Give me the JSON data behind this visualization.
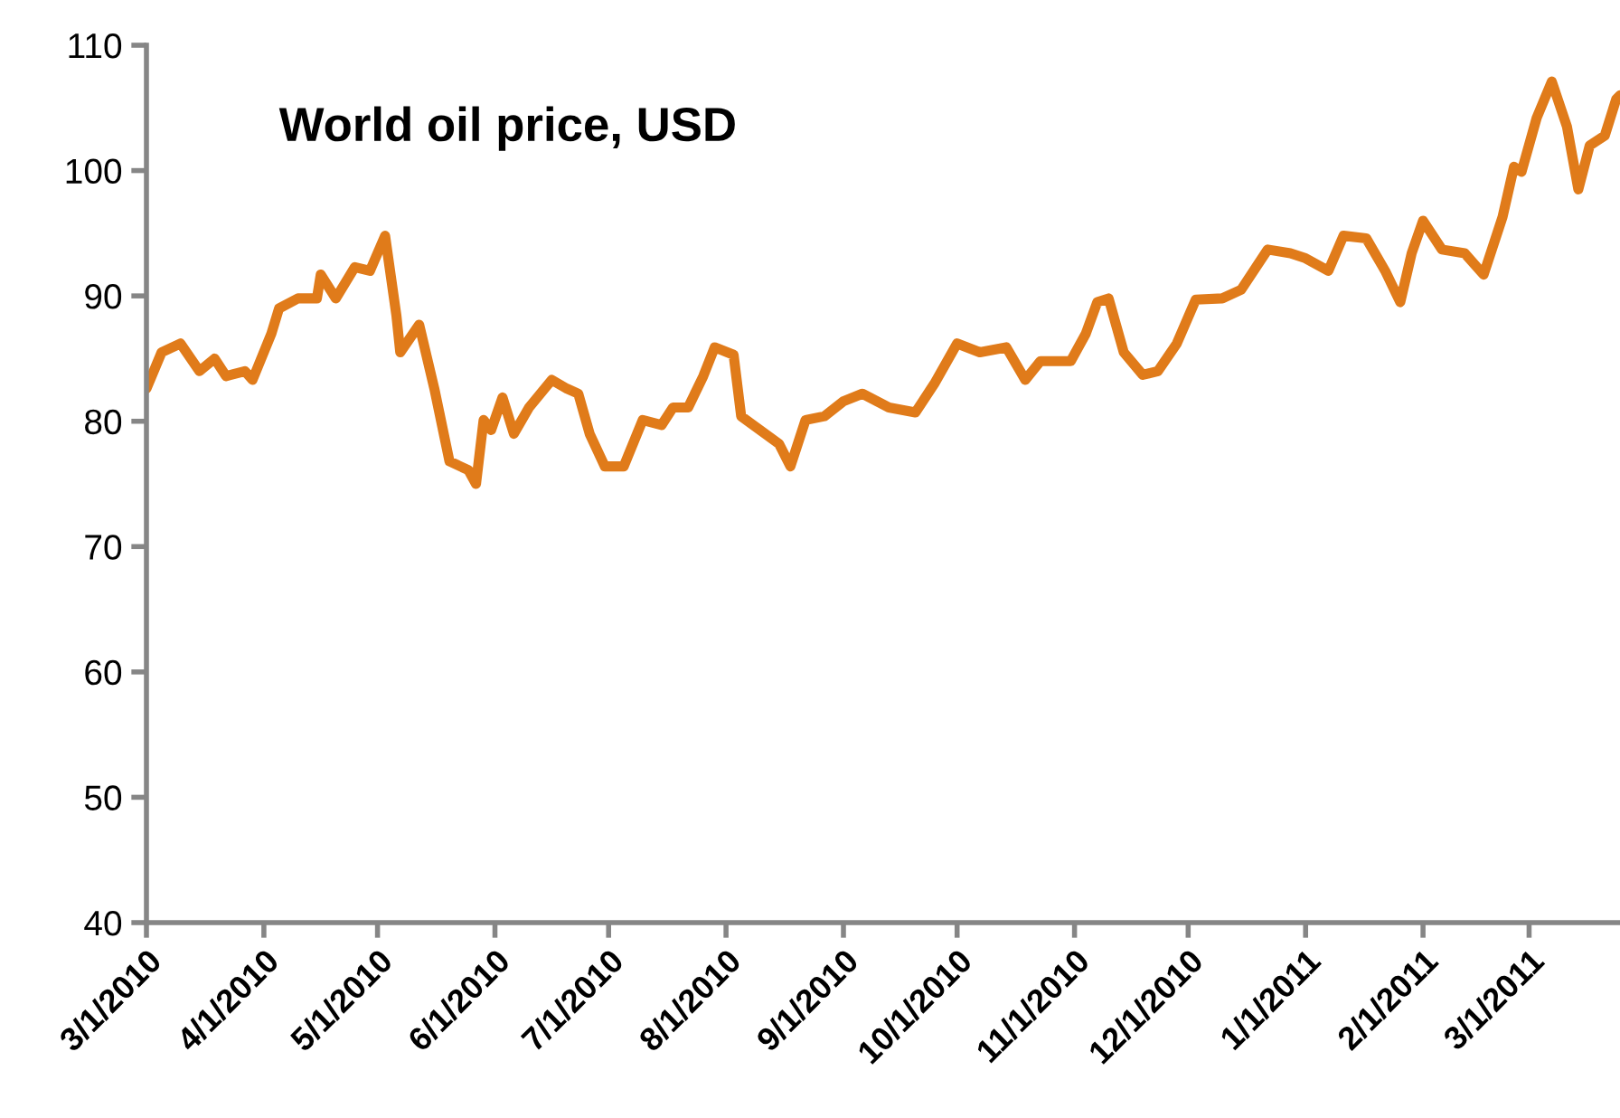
{
  "chart_data": {
    "type": "line",
    "title": "World oil price, USD",
    "x": [
      "2010-03-01",
      "2010-03-05",
      "2010-03-10",
      "2010-03-15",
      "2010-03-19",
      "2010-03-22",
      "2010-03-27",
      "2010-03-29",
      "2010-04-03",
      "2010-04-05",
      "2010-04-10",
      "2010-04-15",
      "2010-04-16",
      "2010-04-20",
      "2010-04-25",
      "2010-04-29",
      "2010-05-03",
      "2010-05-06",
      "2010-05-07",
      "2010-05-12",
      "2010-05-16",
      "2010-05-20",
      "2010-05-25",
      "2010-05-27",
      "2010-05-29",
      "2010-05-31",
      "2010-06-03",
      "2010-06-06",
      "2010-06-10",
      "2010-06-16",
      "2010-06-20",
      "2010-06-23",
      "2010-06-26",
      "2010-06-30",
      "2010-07-05",
      "2010-07-10",
      "2010-07-15",
      "2010-07-18",
      "2010-07-22",
      "2010-07-26",
      "2010-07-29",
      "2010-08-03",
      "2010-08-05",
      "2010-08-10",
      "2010-08-15",
      "2010-08-18",
      "2010-08-22",
      "2010-08-27",
      "2010-09-01",
      "2010-09-06",
      "2010-09-13",
      "2010-09-20",
      "2010-09-25",
      "2010-10-01",
      "2010-10-07",
      "2010-10-14",
      "2010-10-19",
      "2010-10-23",
      "2010-10-31",
      "2010-11-04",
      "2010-11-07",
      "2010-11-10",
      "2010-11-14",
      "2010-11-19",
      "2010-11-23",
      "2010-11-28",
      "2010-12-03",
      "2010-12-10",
      "2010-12-15",
      "2010-12-22",
      "2010-12-28",
      "2011-01-01",
      "2011-01-07",
      "2011-01-11",
      "2011-01-17",
      "2011-01-22",
      "2011-01-26",
      "2011-01-29",
      "2011-02-01",
      "2011-02-06",
      "2011-02-12",
      "2011-02-17",
      "2011-02-22",
      "2011-02-25",
      "2011-02-27",
      "2011-03-03",
      "2011-03-07",
      "2011-03-11",
      "2011-03-14",
      "2011-03-17",
      "2011-03-21",
      "2011-03-24",
      "2011-03-25"
    ],
    "series": [
      {
        "color": "#e07b1a",
        "values": [
          82.6,
          85.5,
          86.2,
          84,
          85,
          83.6,
          84,
          83.3,
          87,
          89,
          89.8,
          89.8,
          91.7,
          89.8,
          92.3,
          92,
          94.8,
          88.4,
          85.5,
          87.7,
          82.6,
          76.8,
          76.1,
          75,
          80.1,
          79.3,
          81.9,
          79,
          81.1,
          83.3,
          82.6,
          82.2,
          79,
          76.4,
          76.4,
          80.1,
          79.7,
          81.1,
          81.1,
          83.6,
          85.9,
          85.3,
          80.4,
          79.3,
          78.2,
          76.4,
          80.1,
          80.4,
          81.6,
          82.2,
          81.1,
          80.7,
          83,
          86.2,
          85.5,
          85.9,
          83.3,
          84.8,
          84.8,
          87,
          89.5,
          89.8,
          85.5,
          83.7,
          84,
          86.2,
          89.7,
          89.8,
          90.5,
          93.7,
          93.4,
          93,
          92,
          94.8,
          94.6,
          92,
          89.5,
          93.4,
          96,
          93.7,
          93.4,
          91.7,
          96.3,
          100.3,
          99.9,
          104.2,
          107.1,
          103.5,
          98.5,
          102,
          102.8,
          105.7,
          106
        ]
      }
    ],
    "xlim": [
      "2010-03-01",
      "2011-03-25"
    ],
    "xticks": [
      {
        "value": "2010-03-01",
        "label": "3/1/2010"
      },
      {
        "value": "2010-04-01",
        "label": "4/1/2010"
      },
      {
        "value": "2010-05-01",
        "label": "5/1/2010"
      },
      {
        "value": "2010-06-01",
        "label": "6/1/2010"
      },
      {
        "value": "2010-07-01",
        "label": "7/1/2010"
      },
      {
        "value": "2010-08-01",
        "label": "8/1/2010"
      },
      {
        "value": "2010-09-01",
        "label": "9/1/2010"
      },
      {
        "value": "2010-10-01",
        "label": "10/1/2010"
      },
      {
        "value": "2010-11-01",
        "label": "11/1/2010"
      },
      {
        "value": "2010-12-01",
        "label": "12/1/2010"
      },
      {
        "value": "2011-01-01",
        "label": "1/1/2011"
      },
      {
        "value": "2011-02-01",
        "label": "2/1/2011"
      },
      {
        "value": "2011-03-01",
        "label": "3/1/2011"
      }
    ],
    "ylim": [
      40,
      110
    ],
    "yticks": [
      40,
      50,
      60,
      70,
      80,
      90,
      100,
      110
    ],
    "grid": false,
    "legend": false,
    "marker": "none",
    "line_style": "solid"
  }
}
